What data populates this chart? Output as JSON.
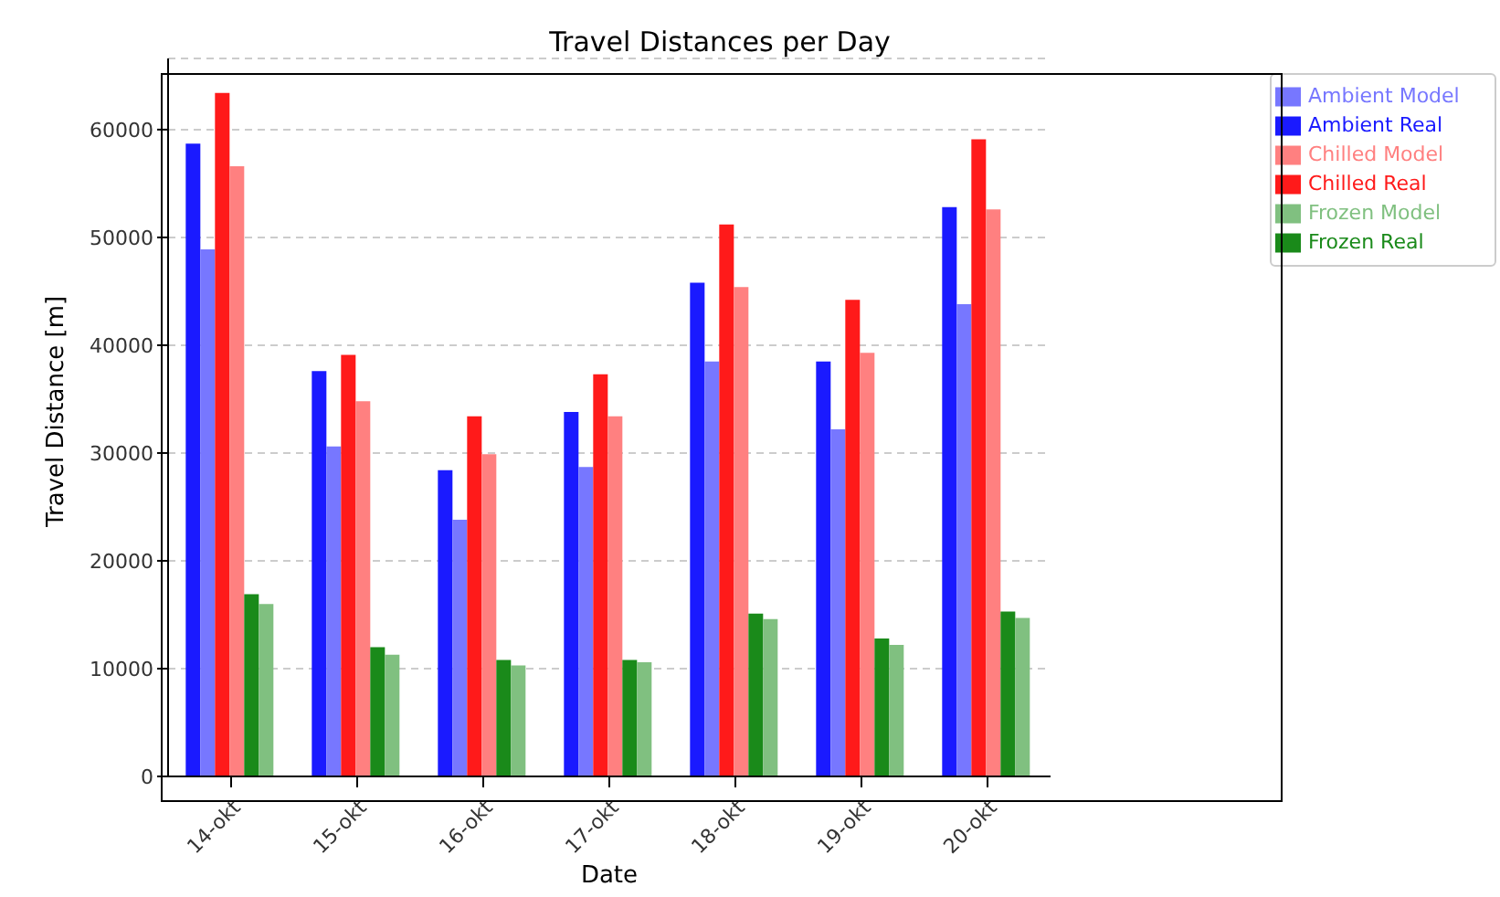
{
  "chart_data": {
    "type": "bar",
    "title": "Travel Distances per Day",
    "xlabel": "Date",
    "ylabel": "Travel Distance [m]",
    "categories": [
      "14-okt",
      "15-okt",
      "16-okt",
      "17-okt",
      "18-okt",
      "19-okt",
      "20-okt"
    ],
    "series": [
      {
        "name": "Ambient Real",
        "color": "#1a1aff",
        "values": [
          58700,
          37600,
          28400,
          33800,
          45800,
          38500,
          52800
        ]
      },
      {
        "name": "Ambient Model",
        "color": "#7777ff",
        "values": [
          48900,
          30600,
          23800,
          28700,
          38500,
          32200,
          43800
        ]
      },
      {
        "name": "Chilled Real",
        "color": "#ff1a1a",
        "values": [
          63400,
          39100,
          33400,
          37300,
          51200,
          44200,
          59100
        ]
      },
      {
        "name": "Chilled Model",
        "color": "#ff8080",
        "values": [
          56600,
          34800,
          29900,
          33400,
          45400,
          39300,
          52600
        ]
      },
      {
        "name": "Frozen Real",
        "color": "#1a8a1a",
        "values": [
          16900,
          12000,
          10800,
          10800,
          15100,
          12800,
          15300
        ]
      },
      {
        "name": "Frozen Model",
        "color": "#80c080",
        "values": [
          16000,
          11300,
          10300,
          10600,
          14600,
          12200,
          14700
        ]
      }
    ],
    "ylim": [
      0,
      66600
    ],
    "yticks": [
      0,
      10000,
      20000,
      30000,
      40000,
      50000,
      60000
    ],
    "grid": "y",
    "legend": "top right"
  }
}
